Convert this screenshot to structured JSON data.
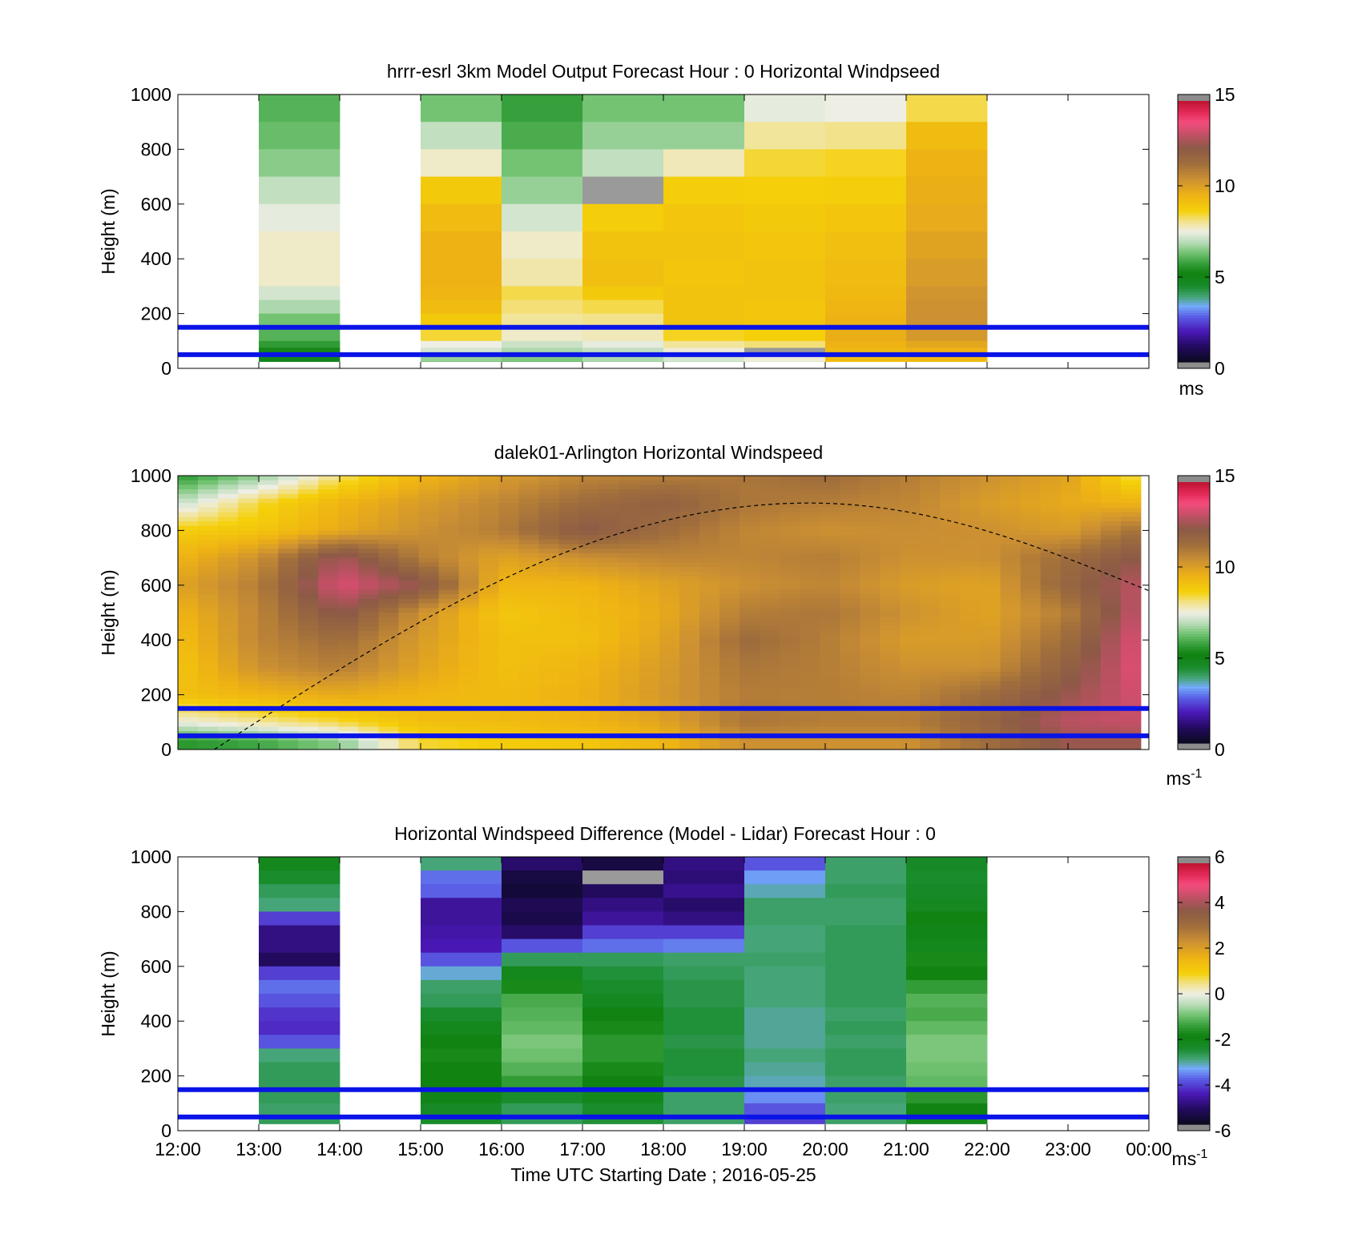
{
  "chart_data": [
    {
      "type": "heatmap",
      "title": "hrrr-esrl 3km Model Output   Forecast Hour : 0 Horizontal Windpseed",
      "ylabel": "Height (m)",
      "xlabel": "",
      "ylim": [
        0,
        1000
      ],
      "yticks": [
        "0",
        "200",
        "400",
        "600",
        "800",
        "1000"
      ],
      "xticks": [
        "12:00",
        "13:00",
        "14:00",
        "15:00",
        "16:00",
        "17:00",
        "18:00",
        "19:00",
        "20:00",
        "21:00",
        "22:00",
        "23:00",
        "00:00"
      ],
      "colorbar": {
        "label": "ms",
        "sup": "",
        "min": 0,
        "max": 15,
        "ticks": [
          "0",
          "5",
          "10",
          "15"
        ]
      },
      "reference_heights": [
        50,
        150
      ],
      "levels_top": [
        1000,
        900,
        800,
        700,
        600,
        500,
        400,
        300,
        250,
        200,
        150,
        100,
        75,
        50,
        25
      ],
      "columns": [
        {
          "hour": 13,
          "values": [
            6.0,
            6.2,
            6.5,
            7.0,
            7.4,
            7.7,
            7.7,
            7.2,
            6.8,
            6.3,
            6.0,
            5.6,
            5.2,
            4.8,
            4.5
          ]
        },
        {
          "hour": 15,
          "values": [
            6.3,
            7.0,
            7.7,
            8.9,
            9.3,
            9.6,
            9.6,
            9.5,
            9.3,
            8.9,
            8.5,
            7.5,
            7.2,
            6.6,
            5.9
          ]
        },
        {
          "hour": 16,
          "values": [
            5.7,
            5.9,
            6.3,
            6.6,
            7.2,
            7.7,
            7.9,
            8.4,
            8.2,
            8.0,
            7.7,
            7.1,
            6.8,
            6.4,
            6.0
          ]
        },
        {
          "hour": 17,
          "values": [
            6.3,
            6.6,
            7.0,
            null,
            8.8,
            9.1,
            9.2,
            8.9,
            8.4,
            8.1,
            7.8,
            7.4,
            7.0,
            6.8,
            6.5
          ]
        },
        {
          "hour": 18,
          "values": [
            6.3,
            6.6,
            7.8,
            8.8,
            9.0,
            9.1,
            9.0,
            9.1,
            9.1,
            9.1,
            8.6,
            8.0,
            7.6,
            7.2,
            6.7
          ]
        },
        {
          "hour": 19,
          "values": [
            7.4,
            8.0,
            8.5,
            8.7,
            8.9,
            9.0,
            9.1,
            9.1,
            9.0,
            9.0,
            8.7,
            8.2,
            null,
            7.6,
            7.2
          ]
        },
        {
          "hour": 20,
          "values": [
            7.5,
            8.1,
            8.6,
            8.8,
            9.0,
            9.2,
            9.3,
            9.4,
            9.5,
            9.6,
            9.7,
            9.6,
            9.4,
            9.3,
            9.1
          ]
        },
        {
          "hour": 21,
          "values": [
            8.4,
            9.3,
            9.6,
            9.7,
            9.8,
            10.0,
            10.2,
            10.4,
            10.5,
            10.5,
            10.3,
            9.9,
            9.6,
            9.4,
            9.3
          ]
        }
      ]
    },
    {
      "type": "heatmap",
      "title": "dalek01-Arlington  Horizontal Windspeed",
      "ylabel": "Height (m)",
      "xlabel": "",
      "ylim": [
        0,
        1000
      ],
      "yticks": [
        "0",
        "200",
        "400",
        "600",
        "800",
        "1000"
      ],
      "xticks": [
        "12:00",
        "13:00",
        "14:00",
        "15:00",
        "16:00",
        "17:00",
        "18:00",
        "19:00",
        "20:00",
        "21:00",
        "22:00",
        "23:00",
        "00:00"
      ],
      "colorbar": {
        "label": "ms",
        "sup": "-1",
        "min": 0,
        "max": 15,
        "ticks": [
          "0",
          "5",
          "10",
          "15"
        ]
      },
      "reference_heights": [
        50,
        150
      ],
      "time_range_hours": [
        12.0,
        23.9
      ],
      "boundary_layer_curve": {
        "start_hour": 12.45,
        "peak_hour": 19.8,
        "end_hour": 24.0,
        "min_height": 0,
        "peak_height": 900,
        "end_height": 580
      },
      "anchor_hours": [
        12,
        13,
        14,
        15,
        16,
        17,
        18,
        19,
        20,
        21,
        22,
        23,
        24
      ],
      "anchor_heights": [
        1000,
        900,
        800,
        700,
        600,
        500,
        400,
        300,
        200,
        100,
        30
      ],
      "anchor_values": [
        [
          5.5,
          6.5,
          8.2,
          9.5,
          10.2,
          10.8,
          11.0,
          11.2,
          11.5,
          11.0,
          10.5,
          10.0,
          8.0
        ],
        [
          7.0,
          8.5,
          9.5,
          10.2,
          10.8,
          11.5,
          12.0,
          11.2,
          11.0,
          10.8,
          10.2,
          9.8,
          9.5
        ],
        [
          8.8,
          9.0,
          9.8,
          10.5,
          11.0,
          12.3,
          11.5,
          10.8,
          10.5,
          10.6,
          10.5,
          10.2,
          11.5
        ],
        [
          9.5,
          10.5,
          12.8,
          11.0,
          10.0,
          10.5,
          10.8,
          10.8,
          11.0,
          10.5,
          10.5,
          11.5,
          12.5
        ],
        [
          10.0,
          11.0,
          13.5,
          12.5,
          9.5,
          9.5,
          10.0,
          10.5,
          10.8,
          10.2,
          10.0,
          11.8,
          13.2
        ],
        [
          9.5,
          10.8,
          12.5,
          10.5,
          9.0,
          9.3,
          9.8,
          11.0,
          11.2,
          10.5,
          10.0,
          11.0,
          13.5
        ],
        [
          9.2,
          10.8,
          11.5,
          10.2,
          9.2,
          9.2,
          10.0,
          11.5,
          11.0,
          10.2,
          10.2,
          11.5,
          13.8
        ],
        [
          9.0,
          10.5,
          11.0,
          10.0,
          9.2,
          9.5,
          10.2,
          11.2,
          11.0,
          10.5,
          10.5,
          12.0,
          13.8
        ],
        [
          9.2,
          9.5,
          9.8,
          9.5,
          9.3,
          9.6,
          10.3,
          11.0,
          11.0,
          10.8,
          11.5,
          12.5,
          13.5
        ],
        [
          7.5,
          8.0,
          8.5,
          9.2,
          9.3,
          9.5,
          10.0,
          11.2,
          11.0,
          11.0,
          11.8,
          13.0,
          13.2
        ],
        [
          5.5,
          5.8,
          6.5,
          8.5,
          8.8,
          9.0,
          9.5,
          10.5,
          10.5,
          10.5,
          11.5,
          12.5,
          12.5
        ]
      ]
    },
    {
      "type": "heatmap",
      "title": "Horizontal Windspeed Difference (Model - Lidar) Forecast Hour : 0",
      "ylabel": "Height (m)",
      "xlabel": "Time UTC  Starting Date ; 2016-05-25",
      "ylim": [
        0,
        1000
      ],
      "yticks": [
        "0",
        "200",
        "400",
        "600",
        "800",
        "1000"
      ],
      "xticks": [
        "12:00",
        "13:00",
        "14:00",
        "15:00",
        "16:00",
        "17:00",
        "18:00",
        "19:00",
        "20:00",
        "21:00",
        "22:00",
        "23:00",
        "00:00"
      ],
      "colorbar": {
        "label": "ms",
        "sup": "-1",
        "min": -6,
        "max": 6,
        "ticks": [
          "-6",
          "-4",
          "-2",
          "0",
          "2",
          "4",
          "6"
        ]
      },
      "reference_heights": [
        50,
        150
      ],
      "levels_top": [
        1000,
        950,
        900,
        850,
        800,
        750,
        700,
        650,
        600,
        550,
        500,
        450,
        400,
        350,
        300,
        250,
        200,
        150,
        100,
        50
      ],
      "columns": [
        {
          "hour": 13,
          "values": [
            -2.2,
            -2.5,
            -2.8,
            -3.0,
            -4.2,
            -5.0,
            -5.0,
            -5.3,
            -4.2,
            -3.8,
            -4.0,
            -4.3,
            -4.4,
            -4.0,
            -3.0,
            -2.8,
            -2.8,
            -2.8,
            -2.9,
            -2.8
          ]
        },
        {
          "hour": 15,
          "values": [
            -3.0,
            -3.8,
            -3.9,
            -4.8,
            -4.8,
            -4.7,
            -4.6,
            -4.0,
            -3.3,
            -2.9,
            -2.8,
            -2.5,
            -2.2,
            -2.0,
            -1.8,
            -1.9,
            -1.9,
            -2.1,
            -2.4,
            -2.5
          ]
        },
        {
          "hour": 16,
          "values": [
            -5.2,
            -5.6,
            -5.7,
            -5.4,
            -5.5,
            -5.2,
            -4.0,
            -2.8,
            -2.2,
            -1.8,
            -1.3,
            -1.2,
            -1.1,
            -0.9,
            -1.0,
            -1.2,
            -1.5,
            -2.5,
            -2.8,
            -2.8
          ]
        },
        {
          "hour": 17,
          "values": [
            -5.6,
            null,
            -5.3,
            -5.0,
            -4.8,
            -4.2,
            -3.8,
            -2.8,
            -2.6,
            -2.5,
            -2.3,
            -2.0,
            -1.8,
            -1.6,
            -1.6,
            -1.8,
            -2.0,
            -2.2,
            -2.5,
            -2.6
          ]
        },
        {
          "hour": 18,
          "values": [
            -5.0,
            -5.1,
            -4.9,
            -5.2,
            -5.0,
            -4.2,
            -3.7,
            -2.9,
            -2.8,
            -2.7,
            -2.7,
            -2.6,
            -2.6,
            -2.7,
            -2.6,
            -2.6,
            -2.7,
            -2.9,
            -2.9,
            -2.9
          ]
        },
        {
          "hour": 19,
          "values": [
            -4.0,
            -3.5,
            -3.2,
            -2.9,
            -2.9,
            -3.0,
            -3.0,
            -2.9,
            -3.0,
            -3.0,
            -3.0,
            -3.1,
            -3.1,
            -3.1,
            -3.0,
            -3.1,
            -3.2,
            -3.6,
            -4.0,
            -4.2
          ]
        },
        {
          "hour": 20,
          "values": [
            -2.9,
            -2.9,
            -2.8,
            -2.9,
            -2.9,
            -2.8,
            -2.8,
            -2.8,
            -2.8,
            -2.8,
            -2.8,
            -2.9,
            -2.8,
            -2.9,
            -2.8,
            -2.8,
            -2.9,
            -2.9,
            -3.0,
            -2.9
          ]
        },
        {
          "hour": 21,
          "values": [
            -2.4,
            -2.5,
            -2.4,
            -2.3,
            -2.0,
            -2.1,
            -2.2,
            -1.8,
            -1.9,
            -1.5,
            -1.2,
            -1.3,
            -1.1,
            -0.9,
            -0.9,
            -1.0,
            -1.1,
            -1.6,
            -2.0,
            -2.2
          ]
        }
      ]
    }
  ]
}
